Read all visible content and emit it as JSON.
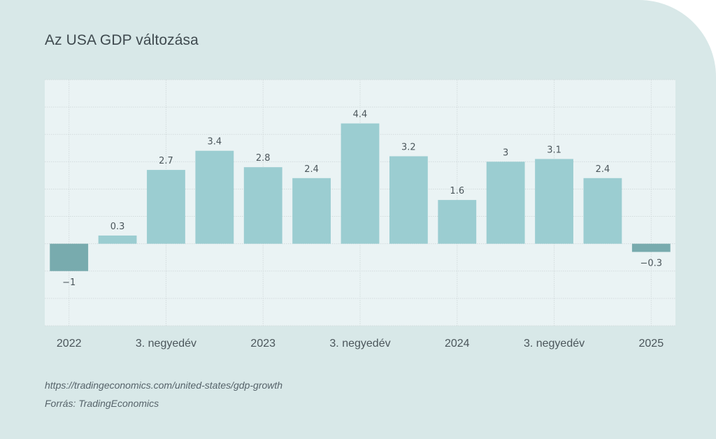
{
  "title": "Az USA GDP változása",
  "source_url": "https://tradingeconomics.com/united-states/gdp-growth",
  "source_credit": "Forrás: TradingEconomics",
  "colors": {
    "positive_bar": "#9bcdd1",
    "negative_bar": "#78abae",
    "background": "#d8e8e8",
    "plot_background": "#eaf3f4",
    "grid": "#d3dcdd"
  },
  "chart_data": {
    "type": "bar",
    "title": "Az USA GDP változása",
    "values": [
      -1,
      0.3,
      2.7,
      3.4,
      2.8,
      2.4,
      4.4,
      3.2,
      1.6,
      3,
      3.1,
      2.4,
      -0.3
    ],
    "value_labels": [
      "−1",
      "0.3",
      "2.7",
      "3.4",
      "2.8",
      "2.4",
      "4.4",
      "3.2",
      "1.6",
      "3",
      "3.1",
      "2.4",
      "−0.3"
    ],
    "x_tick_labels": [
      "2022",
      "3. negyedév",
      "2023",
      "3. negyedév",
      "2024",
      "3. negyedév",
      "2025"
    ],
    "ylim": [
      -3,
      6
    ],
    "grid": true,
    "y_tick_labels_shown": false,
    "legend": "none"
  }
}
